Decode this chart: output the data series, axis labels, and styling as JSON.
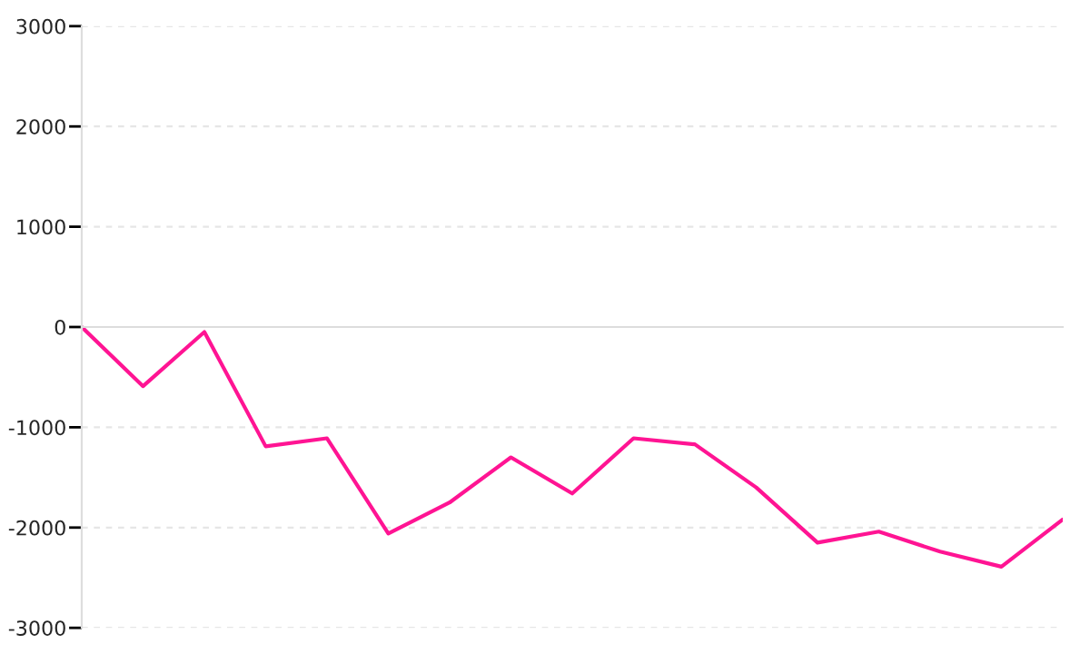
{
  "chart_data": {
    "type": "line",
    "categories": [
      null,
      null,
      null,
      null,
      null,
      null,
      null,
      null,
      null,
      null,
      null,
      null,
      null,
      null,
      null,
      null,
      null
    ],
    "series": [
      {
        "color": "#ff1493",
        "values": [
          0,
          -590,
          -50,
          -1190,
          -1110,
          -2060,
          -1750,
          -1300,
          -1660,
          -1110,
          -1170,
          -1600,
          -2150,
          -2040,
          -2240,
          -2390,
          -1920
        ]
      }
    ],
    "ylim": [
      -3000,
      3000
    ],
    "yticks": [
      -3000,
      -2000,
      -1000,
      0,
      1000,
      2000,
      3000
    ],
    "grid": "y",
    "tick_labels": "y",
    "marker": "none",
    "line_style": "solid"
  }
}
